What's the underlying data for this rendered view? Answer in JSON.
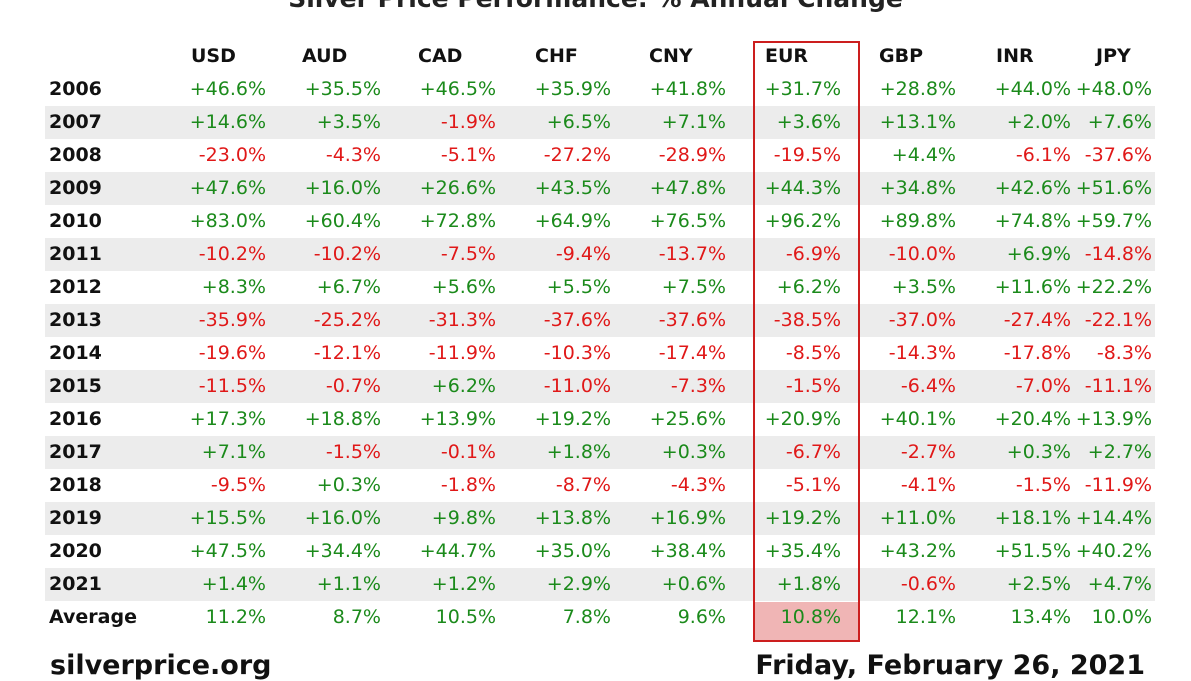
{
  "chart_data": {
    "type": "table",
    "title": "Silver Price Performance: % Annual Change",
    "columns": [
      "USD",
      "AUD",
      "CAD",
      "CHF",
      "CNY",
      "EUR",
      "GBP",
      "INR",
      "JPY"
    ],
    "highlighted_column": "EUR",
    "rows": [
      {
        "label": "2006",
        "values": [
          "+46.6%",
          "+35.5%",
          "+46.5%",
          "+35.9%",
          "+41.8%",
          "+31.7%",
          "+28.8%",
          "+44.0%",
          "+48.0%"
        ]
      },
      {
        "label": "2007",
        "values": [
          "+14.6%",
          "+3.5%",
          "-1.9%",
          "+6.5%",
          "+7.1%",
          "+3.6%",
          "+13.1%",
          "+2.0%",
          "+7.6%"
        ]
      },
      {
        "label": "2008",
        "values": [
          "-23.0%",
          "-4.3%",
          "-5.1%",
          "-27.2%",
          "-28.9%",
          "-19.5%",
          "+4.4%",
          "-6.1%",
          "-37.6%"
        ]
      },
      {
        "label": "2009",
        "values": [
          "+47.6%",
          "+16.0%",
          "+26.6%",
          "+43.5%",
          "+47.8%",
          "+44.3%",
          "+34.8%",
          "+42.6%",
          "+51.6%"
        ]
      },
      {
        "label": "2010",
        "values": [
          "+83.0%",
          "+60.4%",
          "+72.8%",
          "+64.9%",
          "+76.5%",
          "+96.2%",
          "+89.8%",
          "+74.8%",
          "+59.7%"
        ]
      },
      {
        "label": "2011",
        "values": [
          "-10.2%",
          "-10.2%",
          "-7.5%",
          "-9.4%",
          "-13.7%",
          "-6.9%",
          "-10.0%",
          "+6.9%",
          "-14.8%"
        ]
      },
      {
        "label": "2012",
        "values": [
          "+8.3%",
          "+6.7%",
          "+5.6%",
          "+5.5%",
          "+7.5%",
          "+6.2%",
          "+3.5%",
          "+11.6%",
          "+22.2%"
        ]
      },
      {
        "label": "2013",
        "values": [
          "-35.9%",
          "-25.2%",
          "-31.3%",
          "-37.6%",
          "-37.6%",
          "-38.5%",
          "-37.0%",
          "-27.4%",
          "-22.1%"
        ]
      },
      {
        "label": "2014",
        "values": [
          "-19.6%",
          "-12.1%",
          "-11.9%",
          "-10.3%",
          "-17.4%",
          "-8.5%",
          "-14.3%",
          "-17.8%",
          "-8.3%"
        ]
      },
      {
        "label": "2015",
        "values": [
          "-11.5%",
          "-0.7%",
          "+6.2%",
          "-11.0%",
          "-7.3%",
          "-1.5%",
          "-6.4%",
          "-7.0%",
          "-11.1%"
        ]
      },
      {
        "label": "2016",
        "values": [
          "+17.3%",
          "+18.8%",
          "+13.9%",
          "+19.2%",
          "+25.6%",
          "+20.9%",
          "+40.1%",
          "+20.4%",
          "+13.9%"
        ]
      },
      {
        "label": "2017",
        "values": [
          "+7.1%",
          "-1.5%",
          "-0.1%",
          "+1.8%",
          "+0.3%",
          "-6.7%",
          "-2.7%",
          "+0.3%",
          "+2.7%"
        ]
      },
      {
        "label": "2018",
        "values": [
          "-9.5%",
          "+0.3%",
          "-1.8%",
          "-8.7%",
          "-4.3%",
          "-5.1%",
          "-4.1%",
          "-1.5%",
          "-11.9%"
        ]
      },
      {
        "label": "2019",
        "values": [
          "+15.5%",
          "+16.0%",
          "+9.8%",
          "+13.8%",
          "+16.9%",
          "+19.2%",
          "+11.0%",
          "+18.1%",
          "+14.4%"
        ]
      },
      {
        "label": "2020",
        "values": [
          "+47.5%",
          "+34.4%",
          "+44.7%",
          "+35.0%",
          "+38.4%",
          "+35.4%",
          "+43.2%",
          "+51.5%",
          "+40.2%"
        ]
      },
      {
        "label": "2021",
        "values": [
          "+1.4%",
          "+1.1%",
          "+1.2%",
          "+2.9%",
          "+0.6%",
          "+1.8%",
          "-0.6%",
          "+2.5%",
          "+4.7%"
        ]
      },
      {
        "label": "Average",
        "values": [
          "11.2%",
          "8.7%",
          "10.5%",
          "7.8%",
          "9.6%",
          "10.8%",
          "12.1%",
          "13.4%",
          "10.0%"
        ]
      }
    ]
  },
  "footer": {
    "site": "silverprice.org",
    "date": "Friday, February 26, 2021"
  },
  "colors": {
    "positive": "#1b8a1b",
    "negative": "#e01818",
    "highlight_border": "#cc1e1e",
    "highlight_fill": "#f0b5b5",
    "row_shade": "#ececec"
  }
}
